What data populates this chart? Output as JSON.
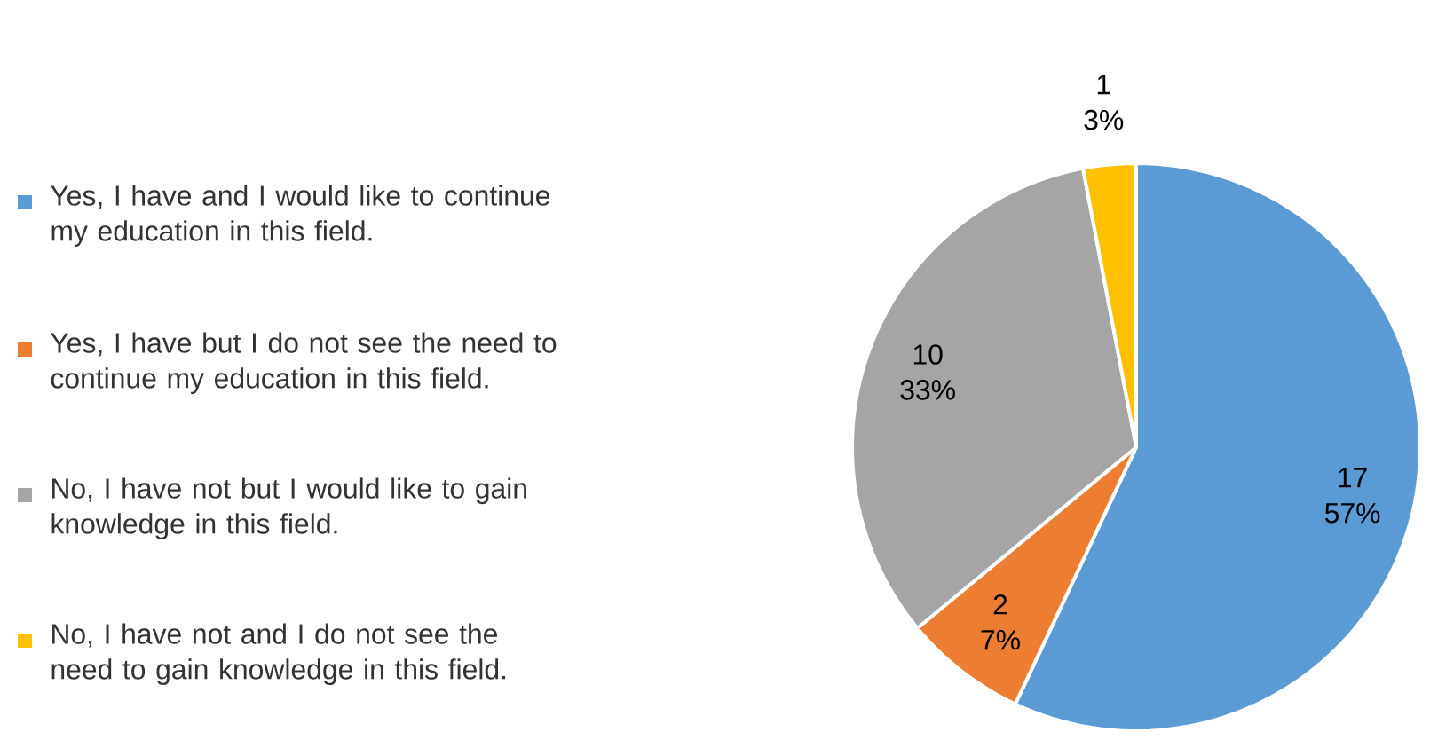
{
  "chart_data": {
    "type": "pie",
    "categories": [
      "Yes, I have and I would like to continue my education in this field.",
      "Yes, I have but I do not see the need to continue my education in this field.",
      "No, I have not but I would like to gain knowledge in this field.",
      "No, I have not and I do not see the need to gain knowledge in this field."
    ],
    "values": [
      57,
      7,
      33,
      3
    ],
    "value_labels": [
      "57%",
      "7%",
      "33%",
      "3%"
    ],
    "annotations": [
      "17",
      "2",
      "10",
      "1"
    ],
    "colors": [
      "#5b9bd5",
      "#ed7d31",
      "#a5a5a5",
      "#ffc000"
    ],
    "legend": "left"
  }
}
